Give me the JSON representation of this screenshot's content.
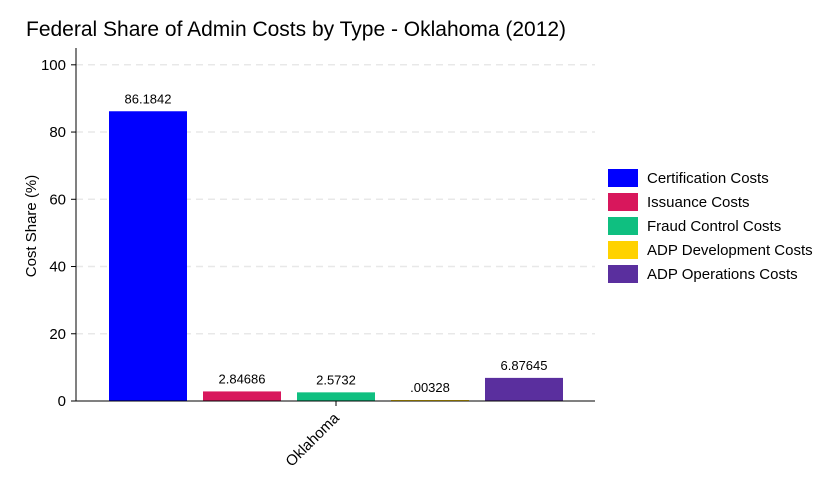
{
  "chart_data": {
    "type": "bar",
    "title": "Federal Share of Admin Costs by Type - Oklahoma (2012)",
    "xlabel": "",
    "ylabel": "Cost Share (%)",
    "ylim": [
      0,
      105
    ],
    "yticks": [
      0,
      20,
      40,
      60,
      80,
      100
    ],
    "grid": true,
    "legend_position": "right",
    "categories": [
      "Oklahoma"
    ],
    "series": [
      {
        "name": "Certification Costs",
        "values": [
          86.1842
        ],
        "label": "86.1842",
        "color": "#0000ff"
      },
      {
        "name": "Issuance Costs",
        "values": [
          2.84686
        ],
        "label": "2.84686",
        "color": "#d8175c"
      },
      {
        "name": "Fraud Control Costs",
        "values": [
          2.5732
        ],
        "label": "2.5732",
        "color": "#0fbf80"
      },
      {
        "name": "ADP Development Costs",
        "values": [
          0.00328
        ],
        "label": ".00328",
        "color": "#ffd200"
      },
      {
        "name": "ADP Operations Costs",
        "values": [
          6.87645
        ],
        "label": "6.87645",
        "color": "#5a2f9e"
      }
    ]
  }
}
